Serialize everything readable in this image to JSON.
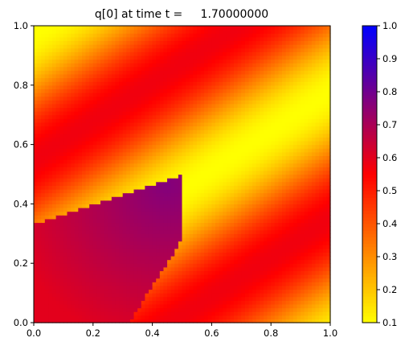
{
  "chart_data": {
    "type": "heatmap",
    "title": "q[0] at time t =     1.70000000",
    "xlabel": "",
    "ylabel": "",
    "xlim": [
      0.0,
      1.0
    ],
    "ylim": [
      0.0,
      1.0
    ],
    "x_ticks": [
      "0.0",
      "0.2",
      "0.4",
      "0.6",
      "0.8",
      "1.0"
    ],
    "y_ticks": [
      "0.0",
      "0.2",
      "0.4",
      "0.6",
      "0.8",
      "1.0"
    ],
    "grid": false,
    "colorbar": {
      "range": [
        0.1,
        1.0
      ],
      "ticks": [
        "0.1",
        "0.2",
        "0.3",
        "0.4",
        "0.5",
        "0.6",
        "0.7",
        "0.8",
        "0.9",
        "1.0"
      ],
      "colors": [
        "#ffff00",
        "#ff0000",
        "#0000ff"
      ]
    },
    "field_description": {
      "background_band_values": [
        0.1,
        0.6
      ],
      "dark_region_max_value": 0.77,
      "dark_region_max_at": [
        0.45,
        0.47
      ]
    }
  }
}
